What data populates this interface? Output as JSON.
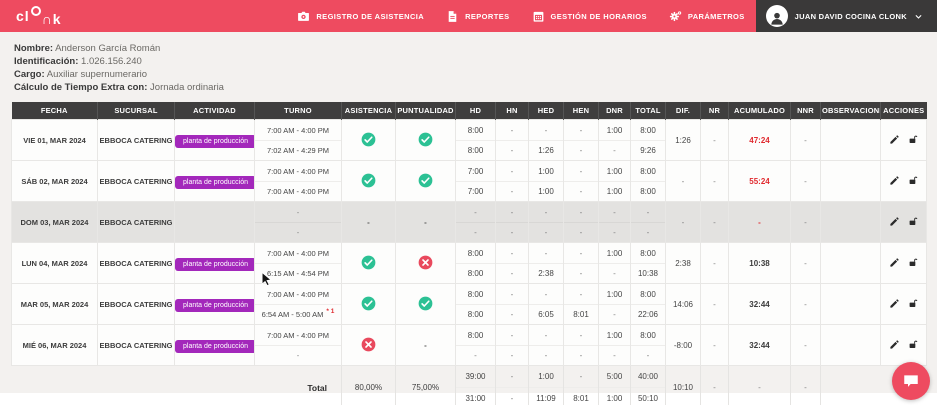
{
  "colors": {
    "primary": "#ee4b60",
    "topbar_user_bg": "#3a3939",
    "table_header_bg": "#3f3e3e",
    "badge_purple": "#a328bb",
    "success_green": "#2cc194",
    "danger_red": "#e9495d",
    "alert_text_red": "#e02a2f",
    "page_bg": "#f3f1ef",
    "highlight_row_bg": "#e3e2e0"
  },
  "topbar": {
    "logo": "clonk",
    "nav": [
      {
        "id": "registro-de-asistencia",
        "icon": "camera-icon",
        "label": "REGISTRO DE ASISTENCIA"
      },
      {
        "id": "reportes",
        "icon": "report-icon",
        "label": "REPORTES"
      },
      {
        "id": "gestion-de-horarios",
        "icon": "calendar-icon",
        "label": "GESTIÓN DE HORARIOS"
      },
      {
        "id": "parametros",
        "icon": "gears-icon",
        "label": "PARÁMETROS"
      }
    ],
    "user": {
      "name": "JUAN DAVID COCINA CLONK"
    }
  },
  "employee": {
    "fields": [
      {
        "label": "Nombre:",
        "value": "Anderson García Román"
      },
      {
        "label": "Identificación:",
        "value": "1.026.156.240"
      },
      {
        "label": "Cargo:",
        "value": "Auxiliar supernumerario"
      },
      {
        "label": "Cálculo de Tiempo Extra con:",
        "value": "Jornada ordinaria"
      }
    ]
  },
  "table": {
    "columns": [
      "FECHA",
      "SUCURSAL",
      "ACTIVIDAD",
      "TURNO",
      "ASISTENCIA",
      "PUNTUALIDAD",
      "HD",
      "HN",
      "HED",
      "HEN",
      "DNR",
      "TOTAL",
      "DIF.",
      "NR",
      "ACUMULADO",
      "NNR",
      "OBSERVACIONES",
      "ACCIONES"
    ],
    "rows": [
      {
        "fecha": "VIE 01, MAR 2024",
        "sucursal": "EBBOCA CATERING",
        "actividad": "planta de producción",
        "turno": [
          "7:00 AM - 4:00 PM",
          "7:02 AM - 4:29 PM"
        ],
        "turno_flag": "",
        "asistencia": "check",
        "puntualidad": "check",
        "planned": [
          "8:00",
          "-",
          "-",
          "-",
          "1:00",
          "8:00"
        ],
        "actual": [
          "8:00",
          "-",
          "1:26",
          "-",
          "-",
          "9:26"
        ],
        "dif": "1:26",
        "nr": "-",
        "acumulado": "47:24",
        "acumulado_red": true,
        "nnr": "-",
        "observaciones": "",
        "highlight": false
      },
      {
        "fecha": "SÁB 02, MAR 2024",
        "sucursal": "EBBOCA CATERING",
        "actividad": "planta de producción",
        "turno": [
          "7:00 AM - 4:00 PM",
          "7:00 AM - 4:00 PM"
        ],
        "turno_flag": "",
        "asistencia": "check",
        "puntualidad": "check",
        "planned": [
          "7:00",
          "-",
          "1:00",
          "-",
          "1:00",
          "8:00"
        ],
        "actual": [
          "7:00",
          "-",
          "1:00",
          "-",
          "1:00",
          "8:00"
        ],
        "dif": "-",
        "nr": "-",
        "acumulado": "55:24",
        "acumulado_red": true,
        "nnr": "-",
        "observaciones": "",
        "highlight": false
      },
      {
        "fecha": "DOM 03, MAR 2024",
        "sucursal": "EBBOCA CATERING",
        "actividad": "",
        "turno": [
          "-",
          "-"
        ],
        "turno_flag": "",
        "asistencia": "dash",
        "puntualidad": "dash",
        "planned": [
          "-",
          "-",
          "-",
          "-",
          "-",
          "-"
        ],
        "actual": [
          "-",
          "-",
          "-",
          "-",
          "-",
          "-"
        ],
        "dif": "-",
        "nr": "-",
        "acumulado": "-",
        "acumulado_red": true,
        "nnr": "-",
        "observaciones": "",
        "highlight": true
      },
      {
        "fecha": "LUN 04, MAR 2024",
        "sucursal": "EBBOCA CATERING",
        "actividad": "planta de producción",
        "turno": [
          "7:00 AM - 4:00 PM",
          "6:15 AM - 4:54 PM"
        ],
        "turno_flag": "",
        "asistencia": "check",
        "puntualidad": "x",
        "planned": [
          "8:00",
          "-",
          "-",
          "-",
          "1:00",
          "8:00"
        ],
        "actual": [
          "8:00",
          "-",
          "2:38",
          "-",
          "-",
          "10:38"
        ],
        "dif": "2:38",
        "nr": "-",
        "acumulado": "10:38",
        "acumulado_red": false,
        "nnr": "-",
        "observaciones": "",
        "highlight": false
      },
      {
        "fecha": "MAR 05, MAR 2024",
        "sucursal": "EBBOCA CATERING",
        "actividad": "planta de producción",
        "turno": [
          "7:00 AM - 4:00 PM",
          "6:54 AM - 5:00 AM"
        ],
        "turno_flag": "* 1",
        "asistencia": "check",
        "puntualidad": "check",
        "planned": [
          "8:00",
          "-",
          "-",
          "-",
          "1:00",
          "8:00"
        ],
        "actual": [
          "8:00",
          "-",
          "6:05",
          "8:01",
          "-",
          "22:06"
        ],
        "dif": "14:06",
        "nr": "-",
        "acumulado": "32:44",
        "acumulado_red": false,
        "nnr": "-",
        "observaciones": "",
        "highlight": false
      },
      {
        "fecha": "MIÉ 06, MAR 2024",
        "sucursal": "EBBOCA CATERING",
        "actividad": "planta de producción",
        "turno": [
          "7:00 AM - 4:00 PM",
          "-"
        ],
        "turno_flag": "",
        "asistencia": "x",
        "puntualidad": "dash",
        "planned": [
          "8:00",
          "-",
          "-",
          "-",
          "1:00",
          "8:00"
        ],
        "actual": [
          "-",
          "-",
          "-",
          "-",
          "-",
          "-"
        ],
        "dif": "-8:00",
        "nr": "-",
        "acumulado": "32:44",
        "acumulado_red": false,
        "nnr": "-",
        "observaciones": "",
        "highlight": false
      }
    ],
    "total": {
      "label": "Total",
      "asistencia_pct": "80,00%",
      "puntualidad_pct": "75,00%",
      "planned": [
        "39:00",
        "-",
        "1:00",
        "-",
        "5:00",
        "40:00"
      ],
      "actual": [
        "31:00",
        "-",
        "11:09",
        "8:01",
        "1:00",
        "50:10"
      ],
      "dif": "10:10",
      "nr": "-",
      "acumulado": "-",
      "nnr": "-"
    }
  }
}
